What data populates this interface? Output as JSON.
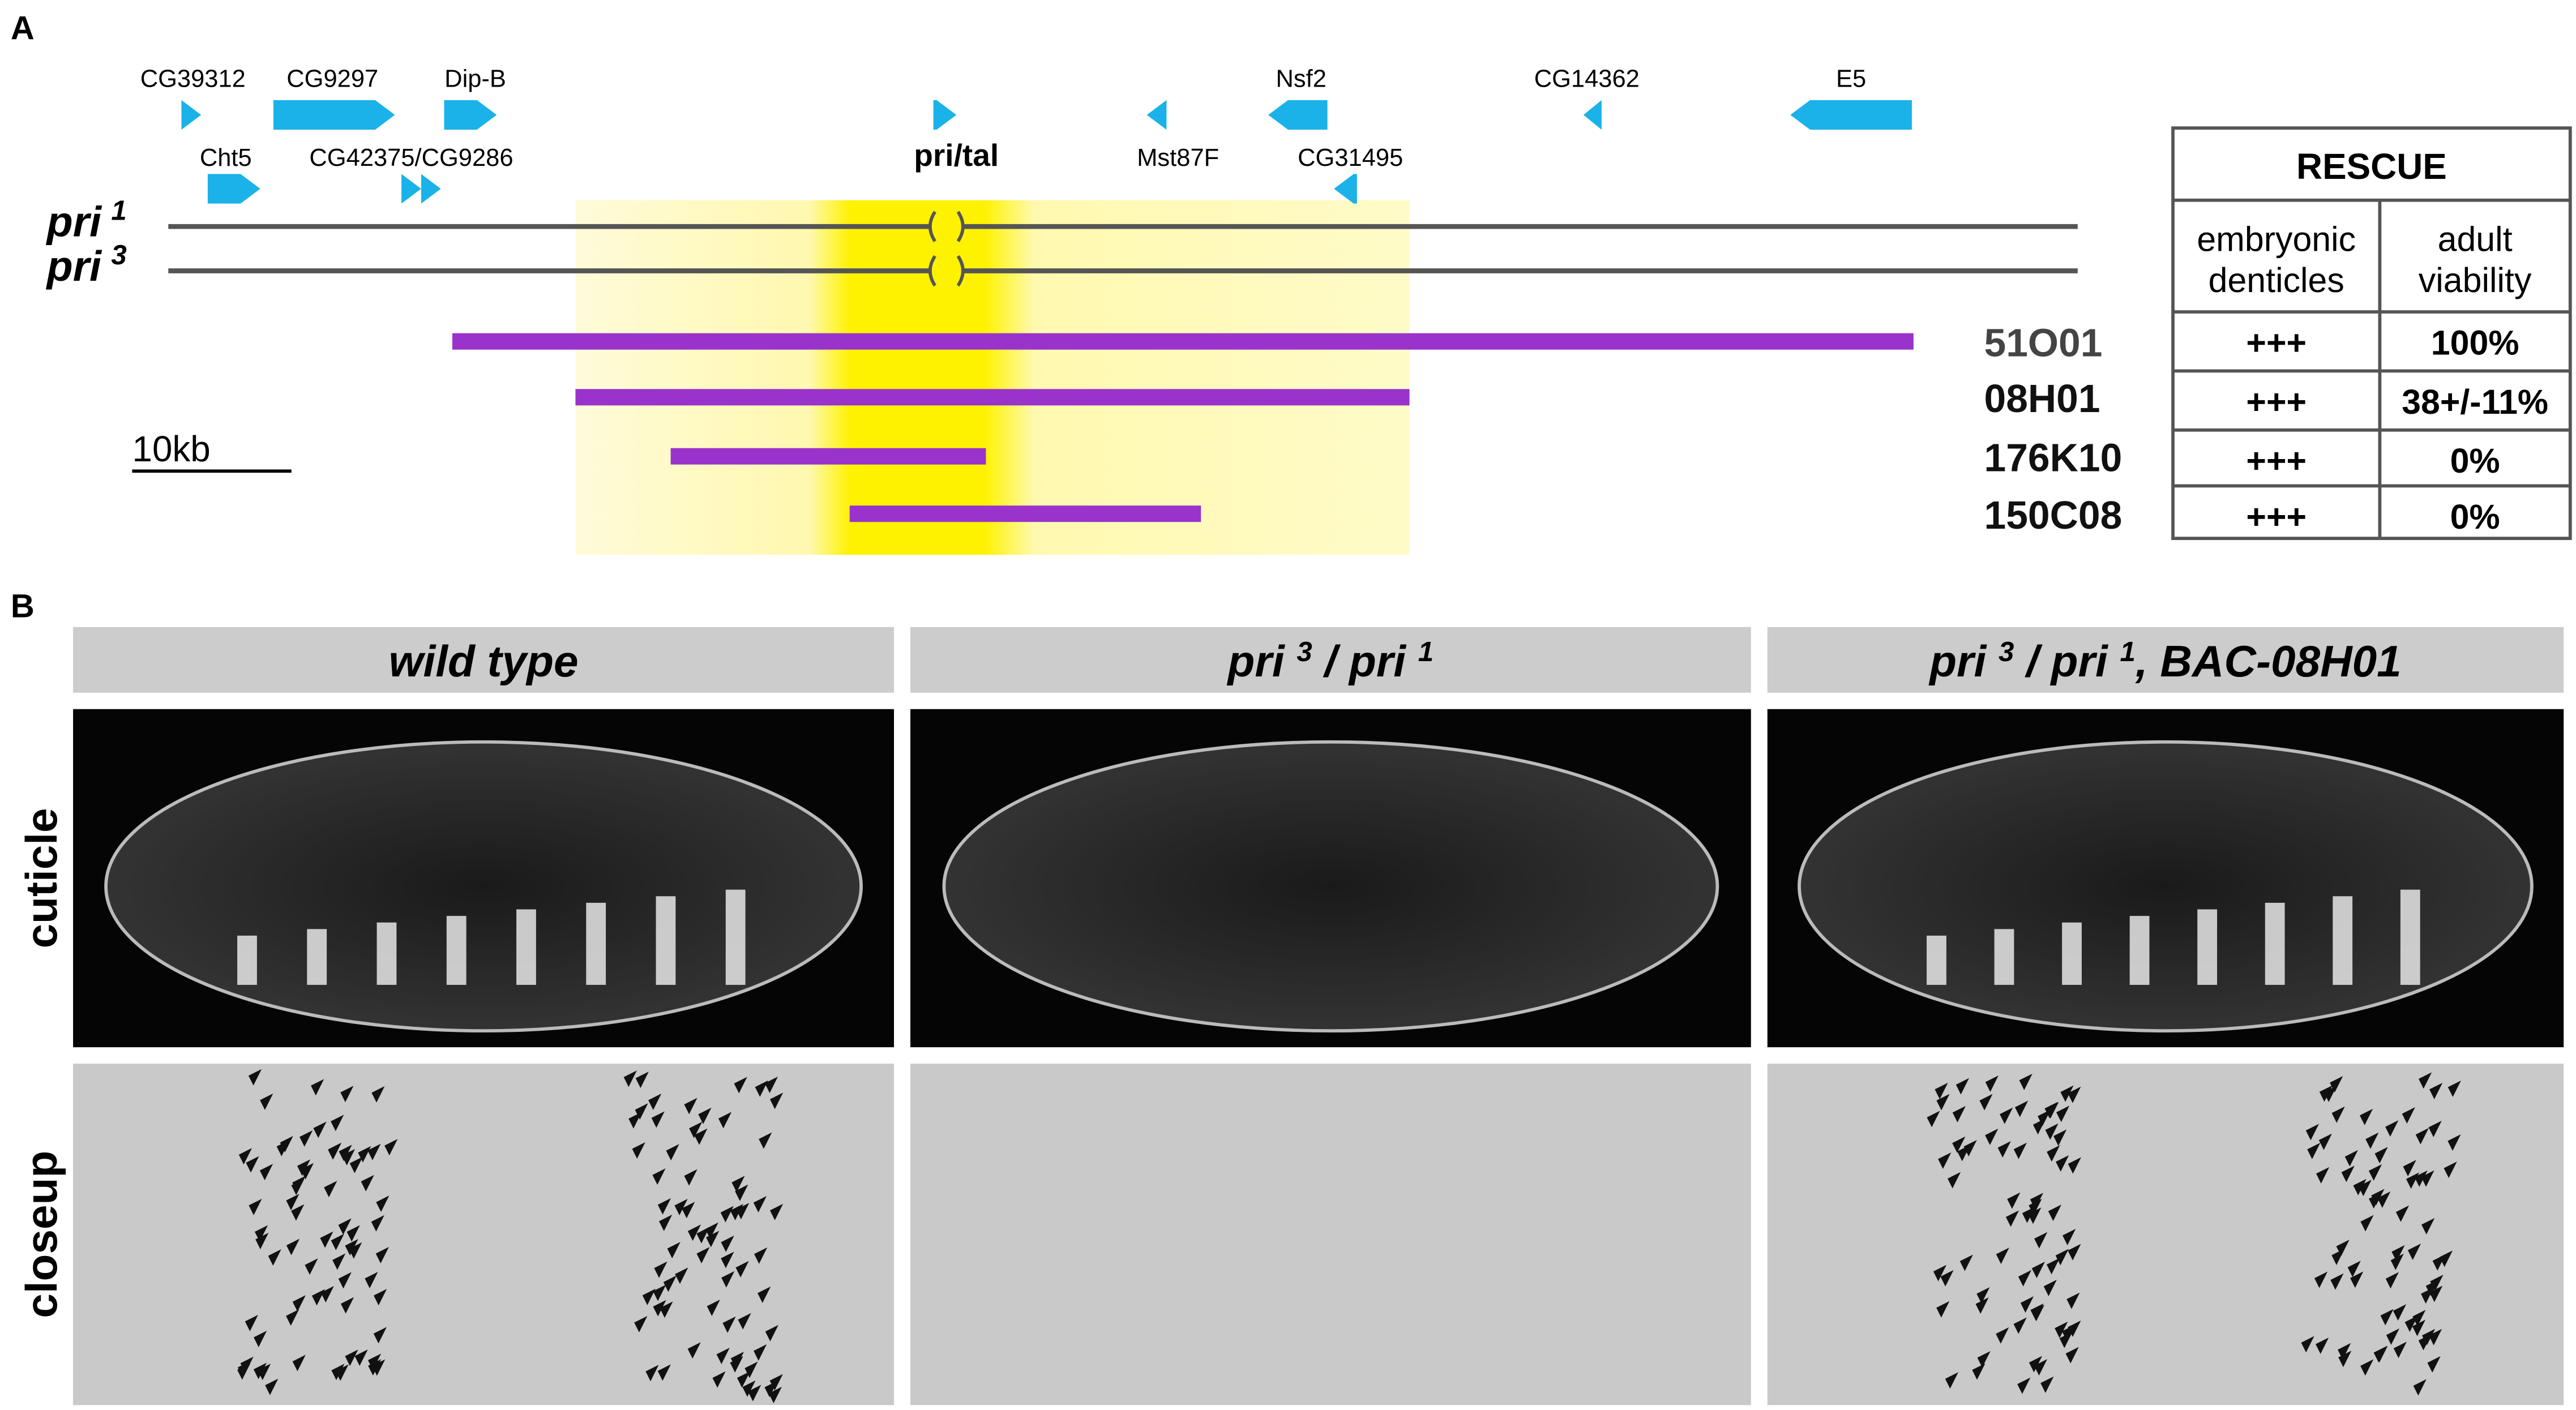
{
  "panel_a": {
    "label": "A",
    "genes": [
      "CG39312",
      "CG9297",
      "Dip-B",
      "Cht5",
      "CG42375/CG9286",
      "pri/tal",
      "Mst87F",
      "Nsf2",
      "CG31495",
      "CG14362",
      "E5"
    ],
    "alleles": [
      {
        "name": "pri",
        "sup": "1"
      },
      {
        "name": "pri",
        "sup": "3"
      }
    ],
    "scale_bar": "10kb",
    "bacs": [
      "51O01",
      "08H01",
      "176K10",
      "150C08"
    ],
    "rescue": {
      "title": "RESCUE",
      "headers": [
        [
          "embryonic",
          "denticles"
        ],
        [
          "adult",
          "viability"
        ]
      ],
      "rows": [
        [
          "+++",
          "100%"
        ],
        [
          "+++",
          "38+/-11%"
        ],
        [
          "+++",
          "0%"
        ],
        [
          "+++",
          "0%"
        ]
      ]
    }
  },
  "panel_b": {
    "label": "B",
    "columns": [
      [
        "wild type"
      ],
      [
        "pri ",
        "3",
        " / pri ",
        "1"
      ],
      [
        "pri ",
        "3",
        " / pri ",
        "1",
        ", BAC-08H01"
      ]
    ],
    "rows": [
      "cuticle",
      "closeup"
    ]
  }
}
